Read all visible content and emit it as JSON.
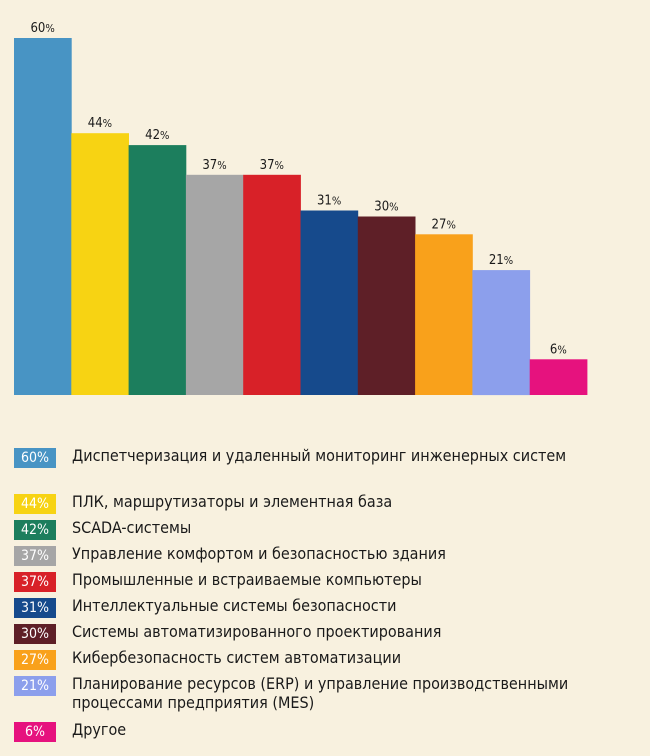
{
  "chart_data": {
    "type": "bar",
    "title": "",
    "xlabel": "",
    "ylabel": "",
    "ylim": [
      0,
      60
    ],
    "grid": false,
    "legend": "bottom",
    "unit": "%",
    "categories": [
      "Диспетчеризация и удаленный мониторинг инженерных систем",
      "ПЛК, маршрутизаторы и элементная база",
      "SCADA-системы",
      "Управление комфортом и безопасностью здания",
      "Промышленные и встраиваемые компьютеры",
      "Интеллектуальные системы безопасности",
      "Системы автоматизированного проектирования",
      "Кибербезопасность систем автоматизации",
      "Планирование ресурсов (ERP) и управление производственными процессами предприятия (MES)",
      "Другое"
    ],
    "values": [
      60,
      44,
      42,
      37,
      37,
      31,
      30,
      27,
      21,
      6
    ],
    "colors": [
      "#4894c4",
      "#f7d313",
      "#1c7e5d",
      "#a6a6a6",
      "#d82128",
      "#164a8c",
      "#5e1f27",
      "#f9a11b",
      "#8c9fec",
      "#e6127e"
    ]
  }
}
